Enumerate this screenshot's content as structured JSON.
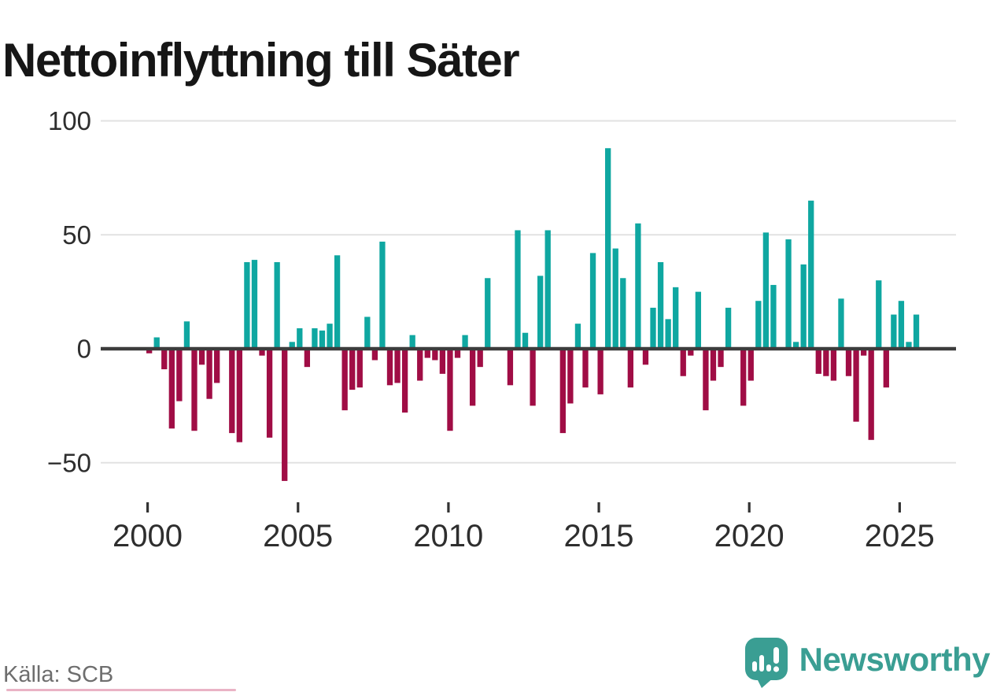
{
  "header": {
    "title": "Nettoinflyttning till Säter"
  },
  "footer": {
    "source_label": "Källa: SCB",
    "brand_name": "Newsworthy"
  },
  "colors": {
    "positive": "#0FA7A1",
    "negative": "#A00D45",
    "grid": "#E2E2E2",
    "zero_axis": "#3C3C3C",
    "tick_mark": "#333333",
    "tick_label": "#2E2E2E",
    "title": "#161616",
    "source": "#6E6E6E",
    "brand": "#3A9E93",
    "bottom_strip": "#D5688B"
  },
  "chart_data": {
    "type": "bar",
    "title": "Nettoinflyttning till Säter",
    "frequency": "quarterly",
    "start_period": "2000-Q1",
    "end_period": "2025-Q3",
    "values": [
      -2,
      5,
      -9,
      -35,
      -23,
      12,
      -36,
      -7,
      -22,
      -15,
      0,
      -37,
      -41,
      38,
      39,
      -3,
      -39,
      38,
      -58,
      3,
      9,
      -8,
      9,
      8,
      11,
      41,
      -27,
      -18,
      -17,
      14,
      -5,
      47,
      -16,
      -15,
      -28,
      6,
      -14,
      -4,
      -5,
      -11,
      -36,
      -4,
      6,
      -25,
      -8,
      31,
      0,
      0,
      -16,
      52,
      7,
      -25,
      32,
      52,
      0,
      -37,
      -24,
      11,
      -17,
      42,
      -20,
      88,
      44,
      31,
      -17,
      55,
      -7,
      18,
      38,
      13,
      27,
      -12,
      -3,
      25,
      -27,
      -14,
      -8,
      18,
      0,
      -25,
      -14,
      21,
      51,
      28,
      0,
      48,
      3,
      37,
      65,
      -11,
      -12,
      -14,
      22,
      -12,
      -32,
      -3,
      -40,
      30,
      -17,
      15,
      21,
      3,
      15
    ],
    "yticks": [
      100,
      50,
      0,
      -50
    ],
    "ytick_labels": [
      "100",
      "50",
      "0",
      "−50"
    ],
    "xtick_years": [
      2000,
      2005,
      2010,
      2015,
      2020,
      2025
    ],
    "xtick_labels": [
      "2000",
      "2005",
      "2010",
      "2015",
      "2020",
      "2025"
    ],
    "ylim": [
      -60,
      100
    ],
    "grid": true,
    "legend": false,
    "source": "SCB"
  }
}
